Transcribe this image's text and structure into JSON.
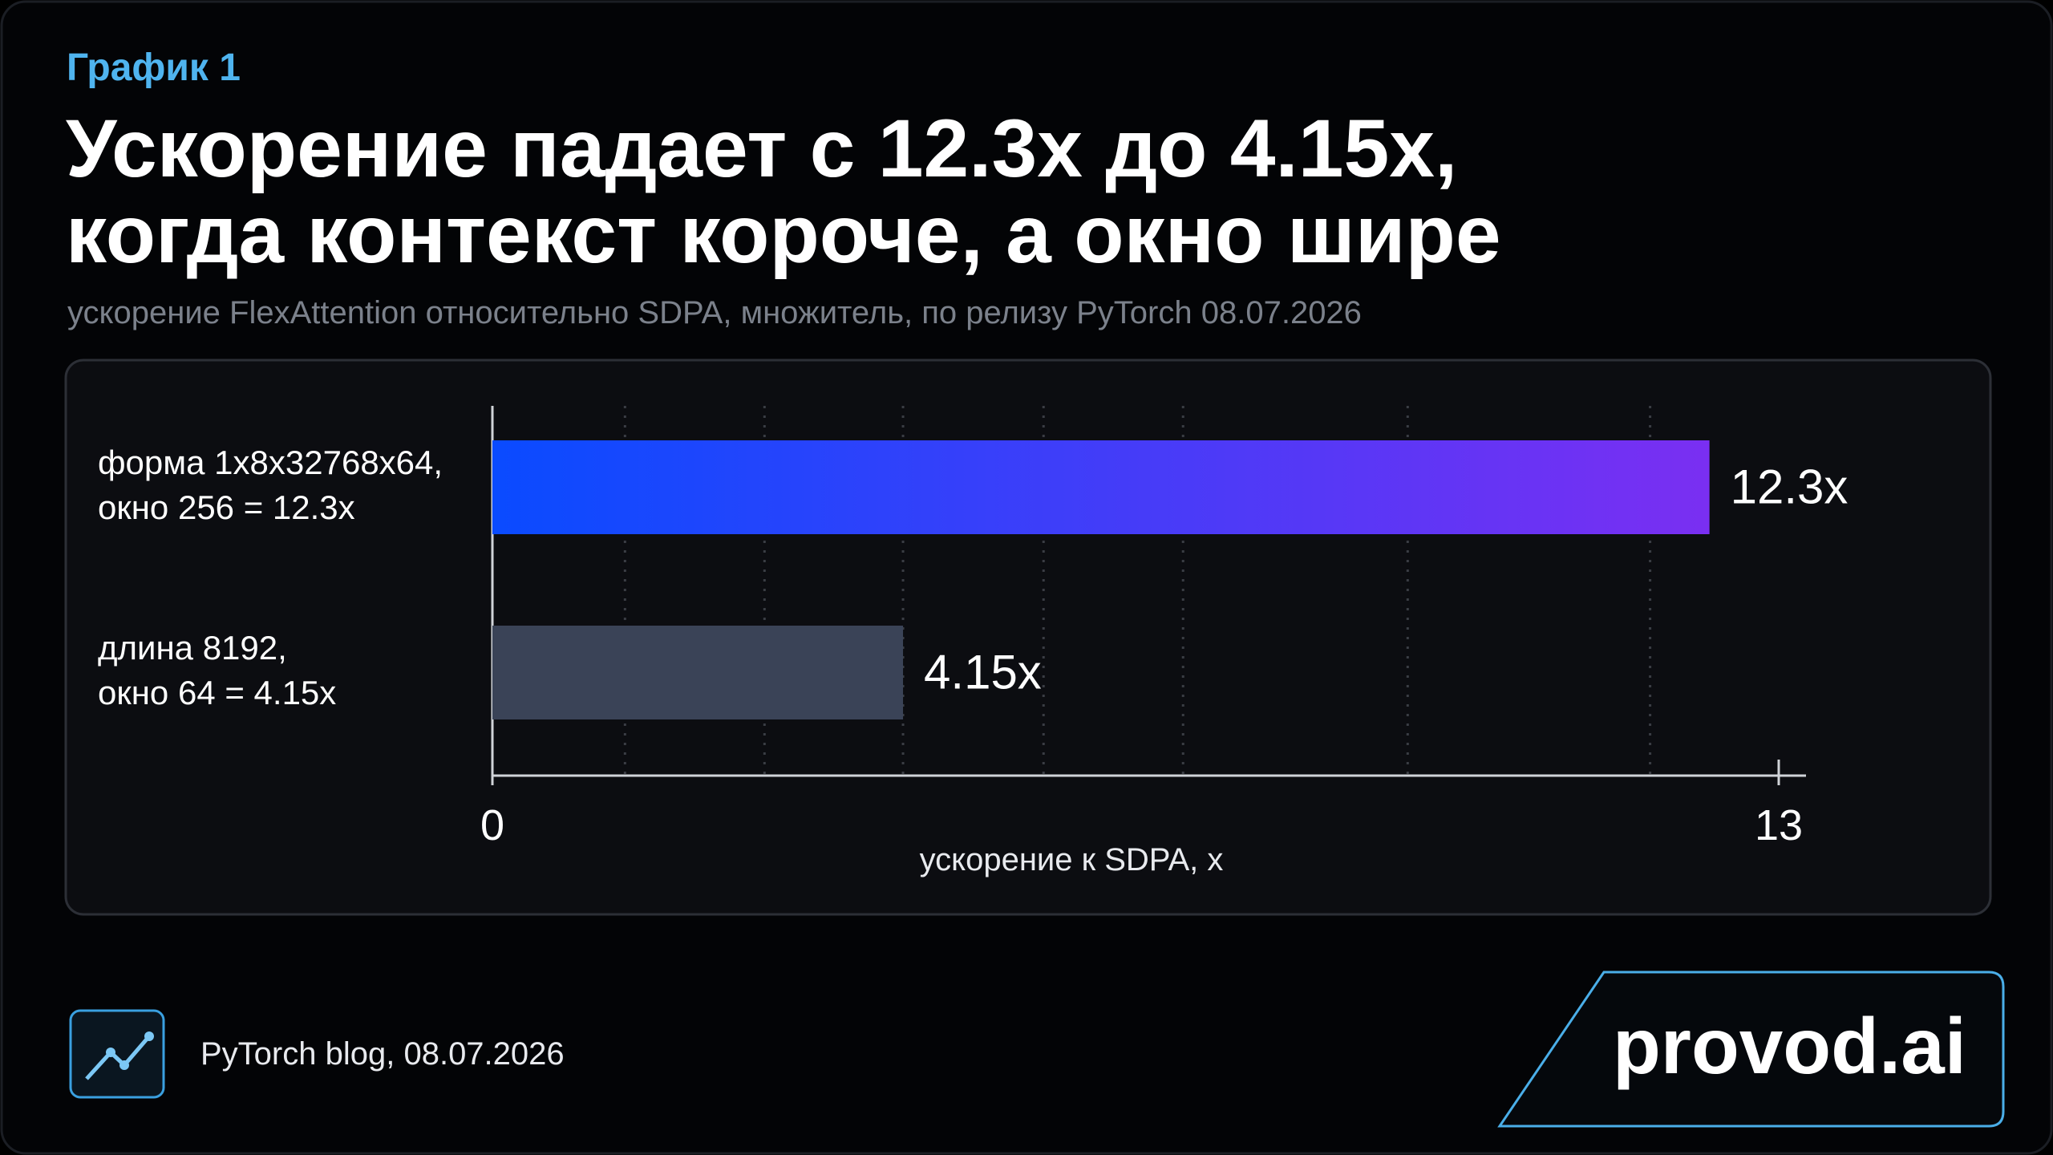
{
  "chart_data": {
    "type": "barh",
    "kicker": "График 1",
    "title": [
      "Ускорение падает с 12.3x до 4.15x,",
      "когда контекст короче, а окно шире"
    ],
    "subtitle": "ускорение FlexAttention относительно SDPA, множитель, по релизу PyTorch 08.07.2026",
    "categories": [
      [
        "форма 1x8x32768x64,",
        "окно 256 = 12.3x"
      ],
      [
        "длина 8192,",
        "окно 64 = 4.15x"
      ]
    ],
    "values": [
      12.3,
      4.15
    ],
    "value_labels": [
      "12.3x",
      "4.15x"
    ],
    "colors": [
      [
        "#0a4bff",
        "#7a2ff2"
      ],
      [
        "#3a4357",
        "#3a4357"
      ]
    ],
    "xlim": [
      0,
      13
    ],
    "xticks": [
      0,
      13
    ],
    "xgrid": [
      1.34,
      2.75,
      4.15,
      5.57,
      6.98,
      9.25,
      11.7
    ],
    "xlabel": "ускорение к SDPA, x",
    "source": "PyTorch blog, 08.07.2026",
    "brand": "provod.ai"
  }
}
